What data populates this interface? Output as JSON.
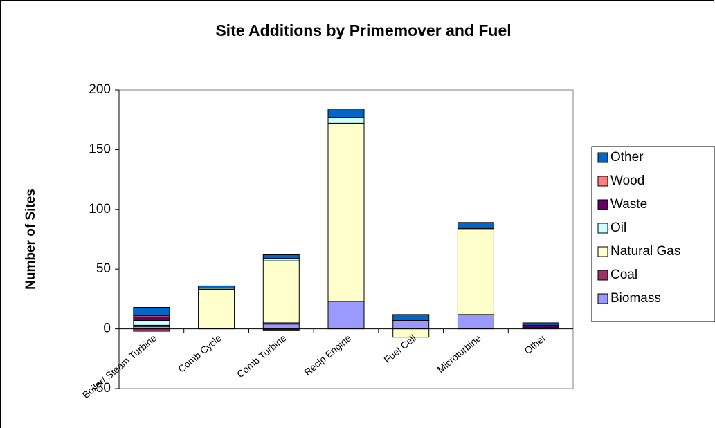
{
  "chart_data": {
    "type": "stacked_bar",
    "title": "Site Additions by Primemover and Fuel",
    "y_label": "Number of Sites",
    "categories": [
      "Boiler/ Steam Turbine",
      "Comb Cycle",
      "Comb Turbine",
      "Recip Engine",
      "Fuel Cell",
      "Microturbine",
      "Other"
    ],
    "series": [
      {
        "name": "Biomass",
        "color": "#9999ff",
        "values": [
          2,
          0,
          4,
          23,
          7,
          12,
          0
        ]
      },
      {
        "name": "Coal",
        "color": "#993366",
        "values": [
          -2,
          0,
          1,
          0,
          0,
          0,
          1
        ]
      },
      {
        "name": "Natural Gas",
        "color": "#ffffcc",
        "values": [
          1,
          33,
          52,
          149,
          -7,
          71,
          0
        ]
      },
      {
        "name": "Oil",
        "color": "#ccffff",
        "values": [
          4,
          1,
          2,
          5,
          0,
          1,
          0
        ]
      },
      {
        "name": "Waste",
        "color": "#660066",
        "values": [
          3,
          0,
          -1,
          0,
          0,
          0,
          2
        ]
      },
      {
        "name": "Wood",
        "color": "#ff8080",
        "values": [
          1,
          0,
          0,
          0,
          0,
          0,
          0
        ]
      },
      {
        "name": "Other",
        "color": "#0066cc",
        "values": [
          7,
          2,
          3,
          7,
          5,
          5,
          2
        ]
      }
    ],
    "ylim": [
      -50,
      200
    ],
    "yticks": [
      -50,
      0,
      50,
      100,
      150,
      200
    ],
    "grid": false,
    "legend": "right"
  }
}
